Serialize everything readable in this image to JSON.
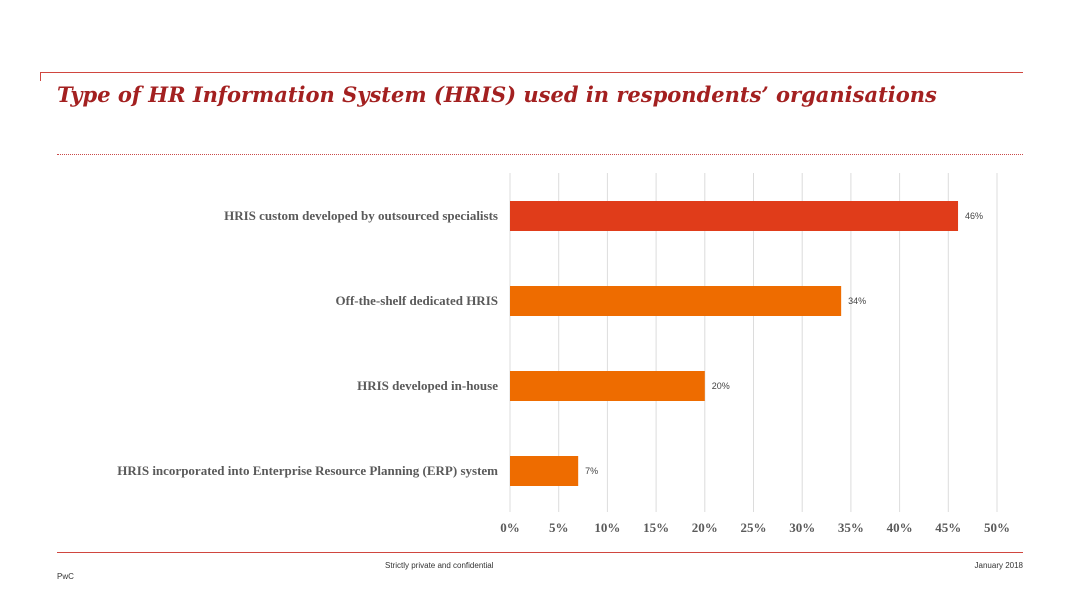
{
  "title": "Type of HR Information System (HRIS) used in respondents’ organisations",
  "footer": {
    "confidential": "Strictly private and confidential",
    "date": "January 2018",
    "brand": "PwC"
  },
  "colors": {
    "accent": "#a32020",
    "bar_highlight": "#e03c1a",
    "bar": "#ee6c00"
  },
  "chart_data": {
    "type": "bar",
    "orientation": "horizontal",
    "categories": [
      "HRIS custom developed by outsourced specialists",
      "Off-the-shelf dedicated HRIS",
      "HRIS developed in-house",
      "HRIS incorporated into Enterprise Resource Planning (ERP) system"
    ],
    "values": [
      46,
      34,
      20,
      7
    ],
    "data_labels": [
      "46%",
      "34%",
      "20%",
      "7%"
    ],
    "bar_colors": [
      "#e03c1a",
      "#ee6c00",
      "#ee6c00",
      "#ee6c00"
    ],
    "xlim": [
      0,
      50
    ],
    "xticks": [
      0,
      5,
      10,
      15,
      20,
      25,
      30,
      35,
      40,
      45,
      50
    ],
    "xtick_labels": [
      "0%",
      "5%",
      "10%",
      "15%",
      "20%",
      "25%",
      "30%",
      "35%",
      "40%",
      "45%",
      "50%"
    ],
    "grid": true,
    "legend": false
  }
}
